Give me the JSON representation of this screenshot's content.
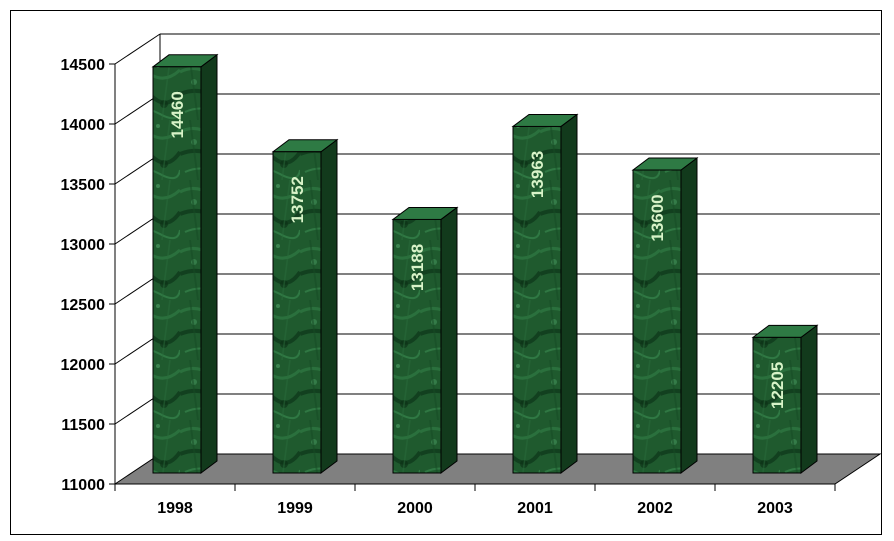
{
  "chart_data": {
    "type": "bar",
    "title": "",
    "xlabel": "",
    "ylabel": "",
    "categories": [
      "1998",
      "1999",
      "2000",
      "2001",
      "2002",
      "2003"
    ],
    "values": [
      14460,
      13752,
      13188,
      13963,
      13600,
      12205
    ],
    "data_labels": [
      "14460",
      "13752",
      "13188",
      "13963",
      "13600",
      "12205"
    ],
    "ylim": [
      11000,
      14500
    ],
    "yticks": [
      11000,
      11500,
      12000,
      12500,
      13000,
      13500,
      14000,
      14500
    ],
    "ytick_labels": [
      "11000",
      "11500",
      "12000",
      "12500",
      "13000",
      "13500",
      "14000",
      "14500"
    ],
    "grid": true,
    "legend": "none",
    "style": "3d",
    "colors": {
      "bar_front": "#1f5a2e",
      "bar_side": "#123a1c",
      "bar_top": "#2e7a44",
      "floor": "#808080",
      "data_label": "#d8f3c8",
      "gridline": "#000000"
    }
  }
}
